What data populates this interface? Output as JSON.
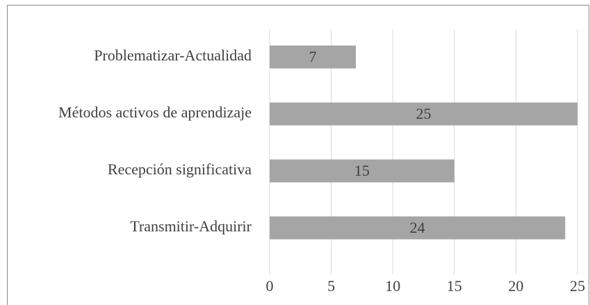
{
  "chart_data": {
    "type": "barh",
    "categories": [
      "Problematizar-Actualidad",
      "Métodos activos de aprendizaje",
      "Recepción significativa",
      "Transmitir-Adquirir"
    ],
    "values": [
      7,
      25,
      15,
      24
    ],
    "color": "#a5a5a5",
    "xlim": [
      0,
      25
    ],
    "xticks": [
      0,
      5,
      10,
      15,
      20,
      25
    ],
    "grid": true
  }
}
